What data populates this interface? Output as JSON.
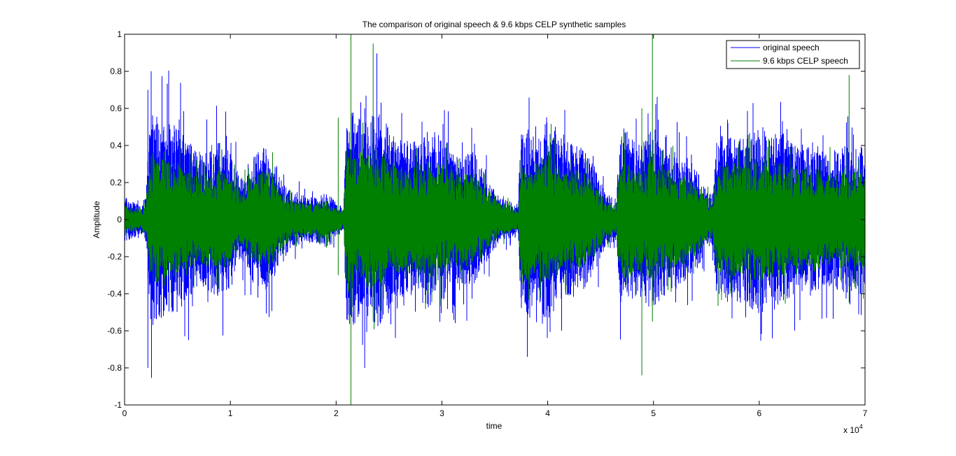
{
  "chart_data": {
    "type": "line",
    "title": "The comparison of original speech & 9.6 kbps CELP synthetic samples",
    "xlabel": "time",
    "ylabel": "Amplitude",
    "xlim": [
      0,
      7
    ],
    "ylim": [
      -1,
      1
    ],
    "x_scale_label": "x 10",
    "x_scale_exponent": "4",
    "x_ticks": [
      0,
      1,
      2,
      3,
      4,
      5,
      6,
      7
    ],
    "x_tick_labels": [
      "0",
      "1",
      "2",
      "3",
      "4",
      "5",
      "6",
      "7"
    ],
    "y_ticks": [
      -1,
      -0.8,
      -0.6,
      -0.4,
      -0.2,
      0,
      0.2,
      0.4,
      0.6,
      0.8,
      1
    ],
    "y_tick_labels": [
      "-1",
      "-0.8",
      "-0.6",
      "-0.4",
      "-0.2",
      "0",
      "0.2",
      "0.4",
      "0.6",
      "0.8",
      "1"
    ],
    "grid": false,
    "legend_position": "top-right",
    "envelope_x": [
      0,
      0.1,
      0.15,
      0.2,
      0.25,
      0.35,
      0.5,
      0.7,
      0.9,
      1.0,
      1.1,
      1.2,
      1.35,
      1.5,
      1.6,
      1.8,
      1.9,
      2.0,
      2.07,
      2.1,
      2.15,
      2.25,
      2.4,
      2.55,
      2.7,
      2.85,
      3.0,
      3.15,
      3.3,
      3.45,
      3.55,
      3.65,
      3.72,
      3.75,
      3.8,
      3.9,
      4.0,
      4.1,
      4.2,
      4.35,
      4.45,
      4.55,
      4.65,
      4.68,
      4.75,
      4.85,
      5.0,
      5.1,
      5.2,
      5.3,
      5.4,
      5.5,
      5.56,
      5.6,
      5.7,
      5.85,
      6.0,
      6.1,
      6.2,
      6.35,
      6.5,
      6.65,
      6.8,
      6.9,
      7.0
    ],
    "series": [
      {
        "name": "original speech",
        "color": "#0000ff",
        "envelope": [
          0.12,
          0.1,
          0.07,
          0.14,
          0.62,
          0.55,
          0.5,
          0.36,
          0.42,
          0.38,
          0.22,
          0.34,
          0.4,
          0.2,
          0.14,
          0.12,
          0.15,
          0.1,
          0.06,
          0.55,
          0.6,
          0.52,
          0.6,
          0.45,
          0.42,
          0.48,
          0.45,
          0.36,
          0.38,
          0.2,
          0.12,
          0.1,
          0.06,
          0.58,
          0.52,
          0.45,
          0.58,
          0.45,
          0.42,
          0.38,
          0.28,
          0.14,
          0.12,
          0.45,
          0.48,
          0.4,
          0.5,
          0.42,
          0.38,
          0.35,
          0.28,
          0.16,
          0.14,
          0.45,
          0.48,
          0.44,
          0.52,
          0.46,
          0.48,
          0.4,
          0.42,
          0.36,
          0.4,
          0.38,
          0.42
        ]
      },
      {
        "name": "9.6 kbps CELP speech",
        "color": "#008000",
        "envelope": [
          0.08,
          0.07,
          0.05,
          0.1,
          0.38,
          0.33,
          0.3,
          0.24,
          0.28,
          0.25,
          0.16,
          0.23,
          0.28,
          0.15,
          0.1,
          0.09,
          0.11,
          0.07,
          0.05,
          0.38,
          0.42,
          0.36,
          0.4,
          0.3,
          0.28,
          0.32,
          0.3,
          0.25,
          0.26,
          0.15,
          0.09,
          0.08,
          0.05,
          0.36,
          0.34,
          0.3,
          0.38,
          0.3,
          0.28,
          0.26,
          0.2,
          0.1,
          0.09,
          0.3,
          0.32,
          0.28,
          0.34,
          0.28,
          0.26,
          0.24,
          0.2,
          0.12,
          0.1,
          0.3,
          0.32,
          0.3,
          0.34,
          0.31,
          0.32,
          0.28,
          0.29,
          0.25,
          0.27,
          0.26,
          0.28
        ]
      }
    ],
    "spikes": [
      {
        "series": "9.6 kbps CELP speech",
        "x": 2.14,
        "min": -1.0,
        "max": 1.0
      },
      {
        "series": "9.6 kbps CELP speech",
        "x": 2.35,
        "min": -0.55,
        "max": 0.95
      },
      {
        "series": "9.6 kbps CELP speech",
        "x": 4.99,
        "min": -0.55,
        "max": 1.0
      },
      {
        "series": "9.6 kbps CELP speech",
        "x": 2.02,
        "min": -0.3,
        "max": 0.55
      },
      {
        "series": "9.6 kbps CELP speech",
        "x": 6.85,
        "min": -0.45,
        "max": 0.78
      },
      {
        "series": "9.6 kbps CELP speech",
        "x": 4.89,
        "min": -0.84,
        "max": 0.6
      },
      {
        "series": "original speech",
        "x": 0.22,
        "min": -0.8,
        "max": 0.7
      },
      {
        "series": "original speech",
        "x": 2.27,
        "min": -0.8,
        "max": 0.6
      }
    ]
  }
}
